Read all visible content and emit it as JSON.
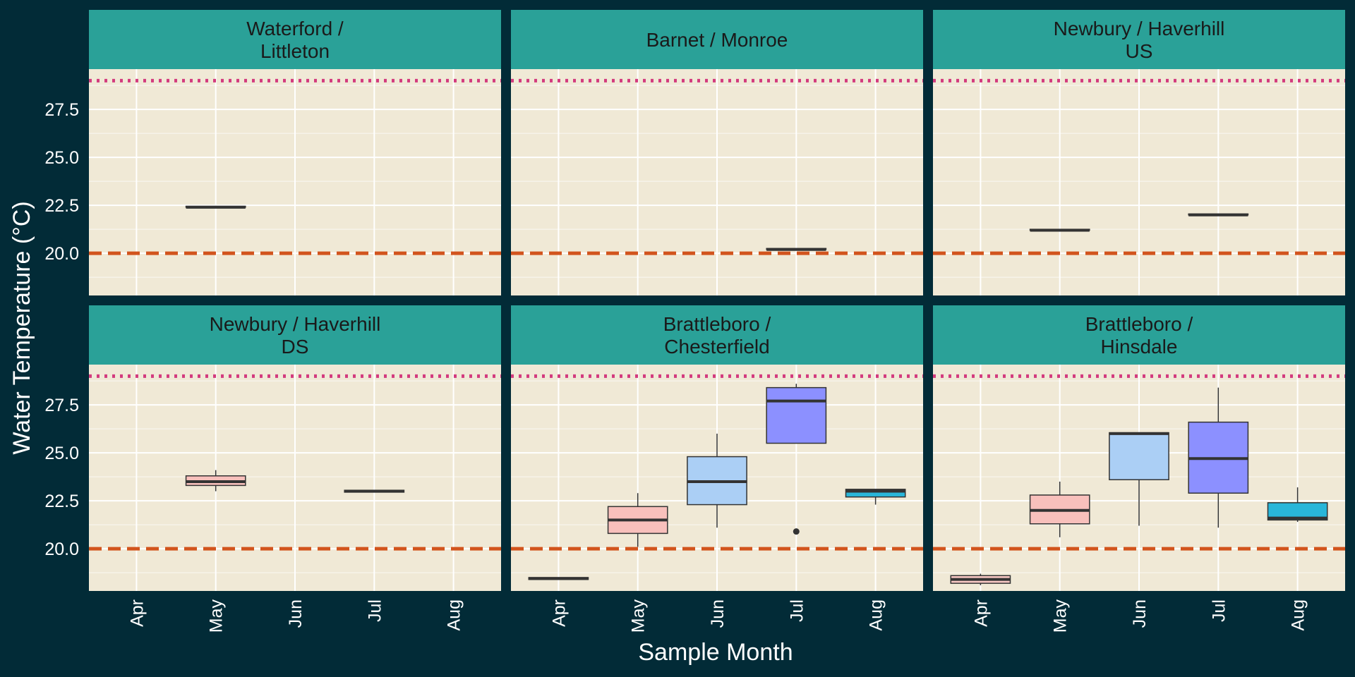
{
  "chart_data": {
    "type": "box",
    "xlabel": "Sample Month",
    "ylabel": "Water Temperature (°C)",
    "categories": [
      "Apr",
      "May",
      "Jun",
      "Jul",
      "Aug"
    ],
    "ylim": [
      17.8,
      29.6
    ],
    "yticks": [
      20.0,
      22.5,
      25.0,
      27.5
    ],
    "ytick_labels": [
      "20.0",
      "22.5",
      "25.0",
      "27.5"
    ],
    "grid": true,
    "reference_lines": [
      {
        "value": 20.0,
        "style": "dashed",
        "color": "#d2541d"
      },
      {
        "value": 29.0,
        "style": "dotted",
        "color": "#d33b7e"
      }
    ],
    "month_colors": {
      "Apr": "#f8c8c4",
      "May": "#f8c0bc",
      "Jun": "#abcff5",
      "Jul": "#8c90ff",
      "Aug": "#29b6d9"
    },
    "colors": {
      "background": "#022b37",
      "panel": "#f0e9d6",
      "strip": "#2aa198",
      "grid": "#ffffff",
      "text": "#ffffff",
      "strip_text": "#1a1a1a",
      "box_line": "#333333"
    },
    "panels": [
      {
        "title": "Waterford /\nLittleton",
        "boxes": [
          {
            "month": "May",
            "q1": 22.4,
            "median": 22.4,
            "q3": 22.45,
            "min": 22.4,
            "max": 22.45,
            "outliers": []
          }
        ]
      },
      {
        "title": "Barnet / Monroe",
        "boxes": [
          {
            "month": "Jul",
            "q1": 20.2,
            "median": 20.2,
            "q3": 20.25,
            "min": 20.2,
            "max": 20.25,
            "outliers": []
          }
        ]
      },
      {
        "title": "Newbury / Haverhill\nUS",
        "boxes": [
          {
            "month": "May",
            "q1": 21.2,
            "median": 21.2,
            "q3": 21.25,
            "min": 21.2,
            "max": 21.25,
            "outliers": []
          },
          {
            "month": "Jul",
            "q1": 22.0,
            "median": 22.0,
            "q3": 22.05,
            "min": 22.0,
            "max": 22.05,
            "outliers": []
          }
        ]
      },
      {
        "title": "Newbury / Haverhill\nDS",
        "boxes": [
          {
            "month": "May",
            "q1": 23.3,
            "median": 23.5,
            "q3": 23.8,
            "min": 23.0,
            "max": 24.1,
            "outliers": []
          },
          {
            "month": "Jul",
            "q1": 22.95,
            "median": 23.0,
            "q3": 23.05,
            "min": 22.95,
            "max": 23.05,
            "outliers": []
          }
        ]
      },
      {
        "title": "Brattleboro /\nChesterfield",
        "boxes": [
          {
            "month": "Apr",
            "q1": 18.4,
            "median": 18.45,
            "q3": 18.5,
            "min": 18.4,
            "max": 18.5,
            "outliers": []
          },
          {
            "month": "May",
            "q1": 20.8,
            "median": 21.5,
            "q3": 22.2,
            "min": 20.1,
            "max": 22.9,
            "outliers": []
          },
          {
            "month": "Jun",
            "q1": 22.3,
            "median": 23.5,
            "q3": 24.8,
            "min": 21.1,
            "max": 26.0,
            "outliers": []
          },
          {
            "month": "Jul",
            "q1": 25.5,
            "median": 27.7,
            "q3": 28.4,
            "min": 25.5,
            "max": 28.6,
            "outliers": [
              20.9
            ]
          },
          {
            "month": "Aug",
            "q1": 22.7,
            "median": 23.0,
            "q3": 23.1,
            "min": 22.3,
            "max": 23.1,
            "outliers": []
          }
        ]
      },
      {
        "title": "Brattleboro /\nHinsdale",
        "boxes": [
          {
            "month": "Apr",
            "q1": 18.2,
            "median": 18.4,
            "q3": 18.6,
            "min": 18.1,
            "max": 18.7,
            "outliers": []
          },
          {
            "month": "May",
            "q1": 21.3,
            "median": 22.0,
            "q3": 22.8,
            "min": 20.6,
            "max": 23.5,
            "outliers": []
          },
          {
            "month": "Jun",
            "q1": 23.6,
            "median": 26.0,
            "q3": 26.05,
            "min": 21.2,
            "max": 26.05,
            "outliers": []
          },
          {
            "month": "Jul",
            "q1": 22.9,
            "median": 24.7,
            "q3": 26.6,
            "min": 21.1,
            "max": 28.4,
            "outliers": []
          },
          {
            "month": "Aug",
            "q1": 21.5,
            "median": 21.6,
            "q3": 22.4,
            "min": 21.4,
            "max": 23.2,
            "outliers": []
          }
        ]
      }
    ]
  }
}
